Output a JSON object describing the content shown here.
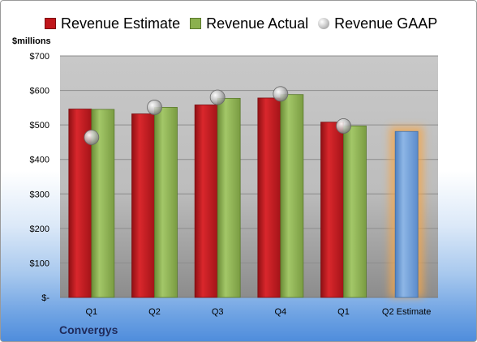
{
  "chart_data": {
    "type": "bar",
    "company": "Convergys",
    "ylabel": "$millions",
    "ylim": [
      0,
      700
    ],
    "yticks": [
      0,
      100,
      200,
      300,
      400,
      500,
      600,
      700
    ],
    "ytick_labels": [
      "$-",
      "$100",
      "$200",
      "$300",
      "$400",
      "$500",
      "$600",
      "$700"
    ],
    "categories": [
      "Q1",
      "Q2",
      "Q3",
      "Q4",
      "Q1",
      "Q2 Estimate"
    ],
    "legend_placement": "top",
    "grid": true,
    "series": [
      {
        "name": "Revenue Estimate",
        "kind": "bar",
        "color": "#c0161b",
        "values": [
          546,
          532,
          558,
          578,
          508,
          null
        ]
      },
      {
        "name": "Revenue Actual",
        "kind": "bar",
        "color": "#8bb04e",
        "values": [
          545,
          551,
          577,
          588,
          497,
          null
        ]
      },
      {
        "name": "Revenue GAAP",
        "kind": "marker",
        "color": "#a6a6a6",
        "values": [
          464,
          551,
          580,
          590,
          497,
          null
        ]
      },
      {
        "name": "Q2 Estimate",
        "kind": "bar",
        "color": "#6f9fd8",
        "glow": "#f4a64a",
        "values": [
          null,
          null,
          null,
          null,
          null,
          481
        ]
      }
    ]
  }
}
